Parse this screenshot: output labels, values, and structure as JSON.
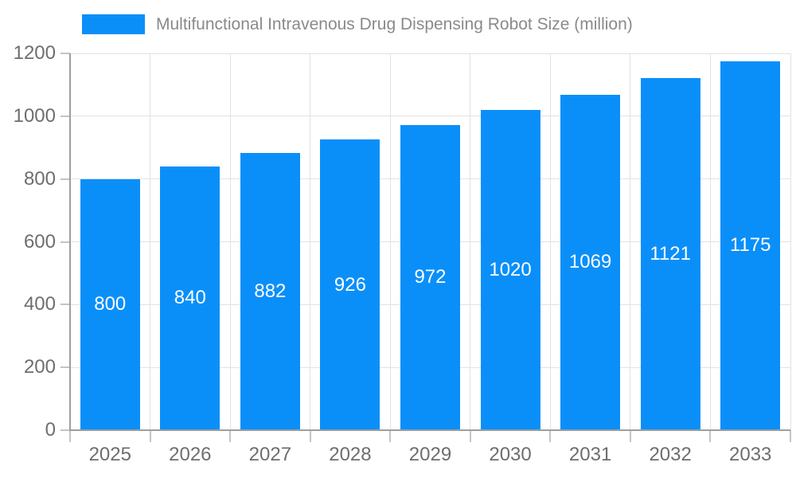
{
  "chart_data": {
    "type": "bar",
    "title": "Multifunctional Intravenous Drug Dispensing Robot Size (million)",
    "legend_label": "Multifunctional Intravenous Drug Dispensing Robot Size (million)",
    "legend_position": "top-left",
    "categories": [
      "2025",
      "2026",
      "2027",
      "2028",
      "2029",
      "2030",
      "2031",
      "2032",
      "2033"
    ],
    "values": [
      800,
      840,
      882,
      926,
      972,
      1020,
      1069,
      1121,
      1175
    ],
    "value_labels": [
      "800",
      "840",
      "882",
      "926",
      "972",
      "1020",
      "1069",
      "1121",
      "1175"
    ],
    "xlabel": "",
    "ylabel": "",
    "ylim": [
      0,
      1200
    ],
    "yticks": [
      0,
      200,
      400,
      600,
      800,
      1000,
      1200
    ],
    "grid": true,
    "colors": {
      "bar": "#0a8ff9",
      "value_label": "#ffffff",
      "gridline": "#e2e2e2",
      "axis_line": "#9e9e9e",
      "tick": "#c4c4c4",
      "tick_label": "#6e6e6e",
      "title": "#8a8a8a",
      "background": "#ffffff"
    }
  }
}
